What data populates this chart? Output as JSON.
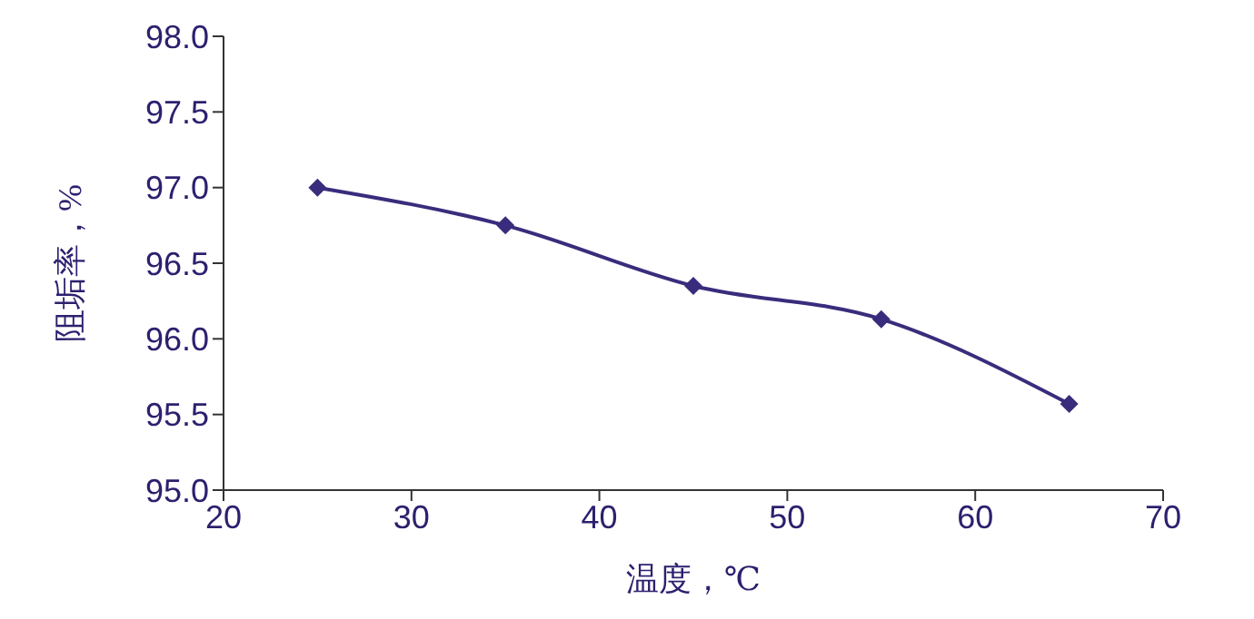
{
  "chart_data": {
    "type": "line",
    "xlabel": "温度，℃",
    "ylabel": "阻垢率，%",
    "x": [
      25,
      35,
      45,
      55,
      65
    ],
    "series": [
      {
        "color": "#3a2c7c",
        "values": [
          97.0,
          96.75,
          96.35,
          96.13,
          95.57
        ]
      }
    ],
    "xlim": [
      20,
      70
    ],
    "xticks": [
      20,
      30,
      40,
      50,
      60,
      70
    ],
    "ylim": [
      95,
      98
    ],
    "yticks": [
      {
        "value": 95,
        "label": "95.0"
      },
      {
        "value": 95.5,
        "label": "95.5"
      },
      {
        "value": 96,
        "label": "96.0"
      },
      {
        "value": 96.5,
        "label": "96.5"
      },
      {
        "value": 97,
        "label": "97.0"
      },
      {
        "value": 97.5,
        "label": "97.5"
      },
      {
        "value": 98,
        "label": "98.0"
      }
    ],
    "grid": false,
    "legend": false,
    "marker": "diamond",
    "line_style": "solid"
  }
}
